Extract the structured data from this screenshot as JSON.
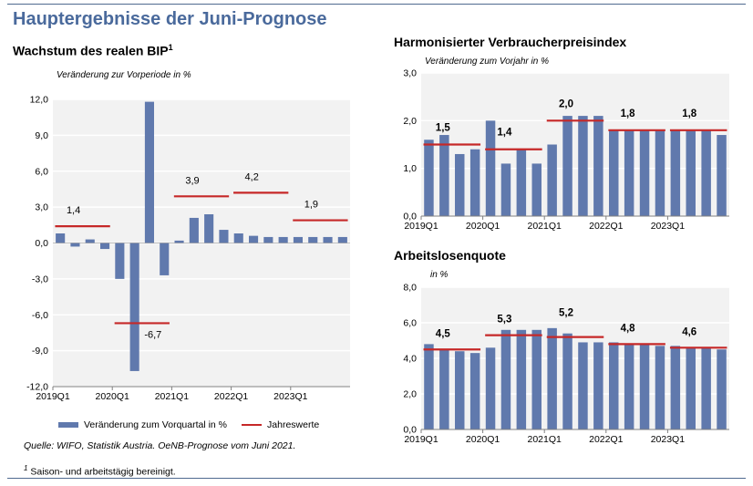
{
  "main_title": "Hauptergebnisse der Juni-Prognose",
  "legend": {
    "bar_label": "Veränderung zum Vorquartal in %",
    "line_label": "Jahreswerte"
  },
  "source": "Quelle: WIFO, Statistik Austria. OeNB-Prognose vom Juni 2021.",
  "footnote": {
    "mark": "1",
    "text": "Saison- und arbeitstägig bereinigt."
  },
  "colors": {
    "bar": "#6079ad",
    "annual_line": "#c62828",
    "title": "#4a6a9c"
  },
  "chart_data": [
    {
      "type": "bar",
      "title": "Wachstum des realen BIP",
      "title_footnote": "1",
      "ylabel": "Veränderung zur Vorperiode in %",
      "ylim": [
        -12,
        12
      ],
      "yticks": [
        "12,0",
        "9,0",
        "6,0",
        "3,0",
        "0,0",
        "-3,0",
        "-6,0",
        "-9,0",
        "-12,0"
      ],
      "ytick_values": [
        12,
        9,
        6,
        3,
        0,
        -3,
        -6,
        -9,
        -12
      ],
      "categories": [
        "2019Q1",
        "2019Q2",
        "2019Q3",
        "2019Q4",
        "2020Q1",
        "2020Q2",
        "2020Q3",
        "2020Q4",
        "2021Q1",
        "2021Q2",
        "2021Q3",
        "2021Q4",
        "2022Q1",
        "2022Q2",
        "2022Q3",
        "2022Q4",
        "2023Q1",
        "2023Q2",
        "2023Q3",
        "2023Q4"
      ],
      "xtick_labels": [
        "2019Q1",
        "",
        "",
        "",
        "2020Q1",
        "",
        "",
        "",
        "2021Q1",
        "",
        "",
        "",
        "2022Q1",
        "",
        "",
        "",
        "2023Q1",
        "",
        "",
        ""
      ],
      "values": [
        0.8,
        -0.3,
        0.3,
        -0.5,
        -3.0,
        -10.7,
        11.8,
        -2.7,
        0.2,
        2.1,
        2.4,
        1.1,
        0.8,
        0.6,
        0.5,
        0.5,
        0.5,
        0.5,
        0.5,
        0.5
      ],
      "annual": [
        {
          "year": 2019,
          "value": 1.4,
          "label": "1,4"
        },
        {
          "year": 2020,
          "value": -6.7,
          "label": "-6,7"
        },
        {
          "year": 2021,
          "value": 3.9,
          "label": "3,9"
        },
        {
          "year": 2022,
          "value": 4.2,
          "label": "4,2"
        },
        {
          "year": 2023,
          "value": 1.9,
          "label": "1,9"
        }
      ],
      "grid": true
    },
    {
      "type": "bar",
      "title": "Harmonisierter Verbraucherpreisindex",
      "ylabel": "Veränderung zum Vorjahr in %",
      "ylim": [
        0,
        3
      ],
      "yticks": [
        "3,0",
        "2,0",
        "1,0",
        "0,0"
      ],
      "ytick_values": [
        3,
        2,
        1,
        0
      ],
      "categories": [
        "2019Q1",
        "2019Q2",
        "2019Q3",
        "2019Q4",
        "2020Q1",
        "2020Q2",
        "2020Q3",
        "2020Q4",
        "2021Q1",
        "2021Q2",
        "2021Q3",
        "2021Q4",
        "2022Q1",
        "2022Q2",
        "2022Q3",
        "2022Q4",
        "2023Q1",
        "2023Q2",
        "2023Q3",
        "2023Q4"
      ],
      "xtick_labels": [
        "2019Q1",
        "",
        "",
        "",
        "2020Q1",
        "",
        "",
        "",
        "2021Q1",
        "",
        "",
        "",
        "2022Q1",
        "",
        "",
        "",
        "2023Q1",
        "",
        "",
        ""
      ],
      "values": [
        1.6,
        1.7,
        1.3,
        1.4,
        2.0,
        1.1,
        1.4,
        1.1,
        1.5,
        2.1,
        2.1,
        2.1,
        1.8,
        1.8,
        1.8,
        1.8,
        1.8,
        1.8,
        1.8,
        1.7
      ],
      "annual": [
        {
          "year": 2019,
          "value": 1.5,
          "label": "1,5"
        },
        {
          "year": 2020,
          "value": 1.4,
          "label": "1,4"
        },
        {
          "year": 2021,
          "value": 2.0,
          "label": "2,0"
        },
        {
          "year": 2022,
          "value": 1.8,
          "label": "1,8"
        },
        {
          "year": 2023,
          "value": 1.8,
          "label": "1,8"
        }
      ],
      "grid": true
    },
    {
      "type": "bar",
      "title": "Arbeitslosenquote",
      "ylabel": "in %",
      "ylim": [
        0,
        8
      ],
      "yticks": [
        "8,0",
        "6,0",
        "4,0",
        "2,0",
        "0,0"
      ],
      "ytick_values": [
        8,
        6,
        4,
        2,
        0
      ],
      "categories": [
        "2019Q1",
        "2019Q2",
        "2019Q3",
        "2019Q4",
        "2020Q1",
        "2020Q2",
        "2020Q3",
        "2020Q4",
        "2021Q1",
        "2021Q2",
        "2021Q3",
        "2021Q4",
        "2022Q1",
        "2022Q2",
        "2022Q3",
        "2022Q4",
        "2023Q1",
        "2023Q2",
        "2023Q3",
        "2023Q4"
      ],
      "xtick_labels": [
        "2019Q1",
        "",
        "",
        "",
        "2020Q1",
        "",
        "",
        "",
        "2021Q1",
        "",
        "",
        "",
        "2022Q1",
        "",
        "",
        "",
        "2023Q1",
        "",
        "",
        ""
      ],
      "values": [
        4.8,
        4.5,
        4.4,
        4.3,
        4.6,
        5.6,
        5.6,
        5.6,
        5.7,
        5.4,
        4.9,
        4.9,
        4.9,
        4.8,
        4.8,
        4.7,
        4.7,
        4.6,
        4.6,
        4.5
      ],
      "annual": [
        {
          "year": 2019,
          "value": 4.5,
          "label": "4,5"
        },
        {
          "year": 2020,
          "value": 5.3,
          "label": "5,3"
        },
        {
          "year": 2021,
          "value": 5.2,
          "label": "5,2"
        },
        {
          "year": 2022,
          "value": 4.8,
          "label": "4,8"
        },
        {
          "year": 2023,
          "value": 4.6,
          "label": "4,6"
        }
      ],
      "grid": true
    }
  ]
}
